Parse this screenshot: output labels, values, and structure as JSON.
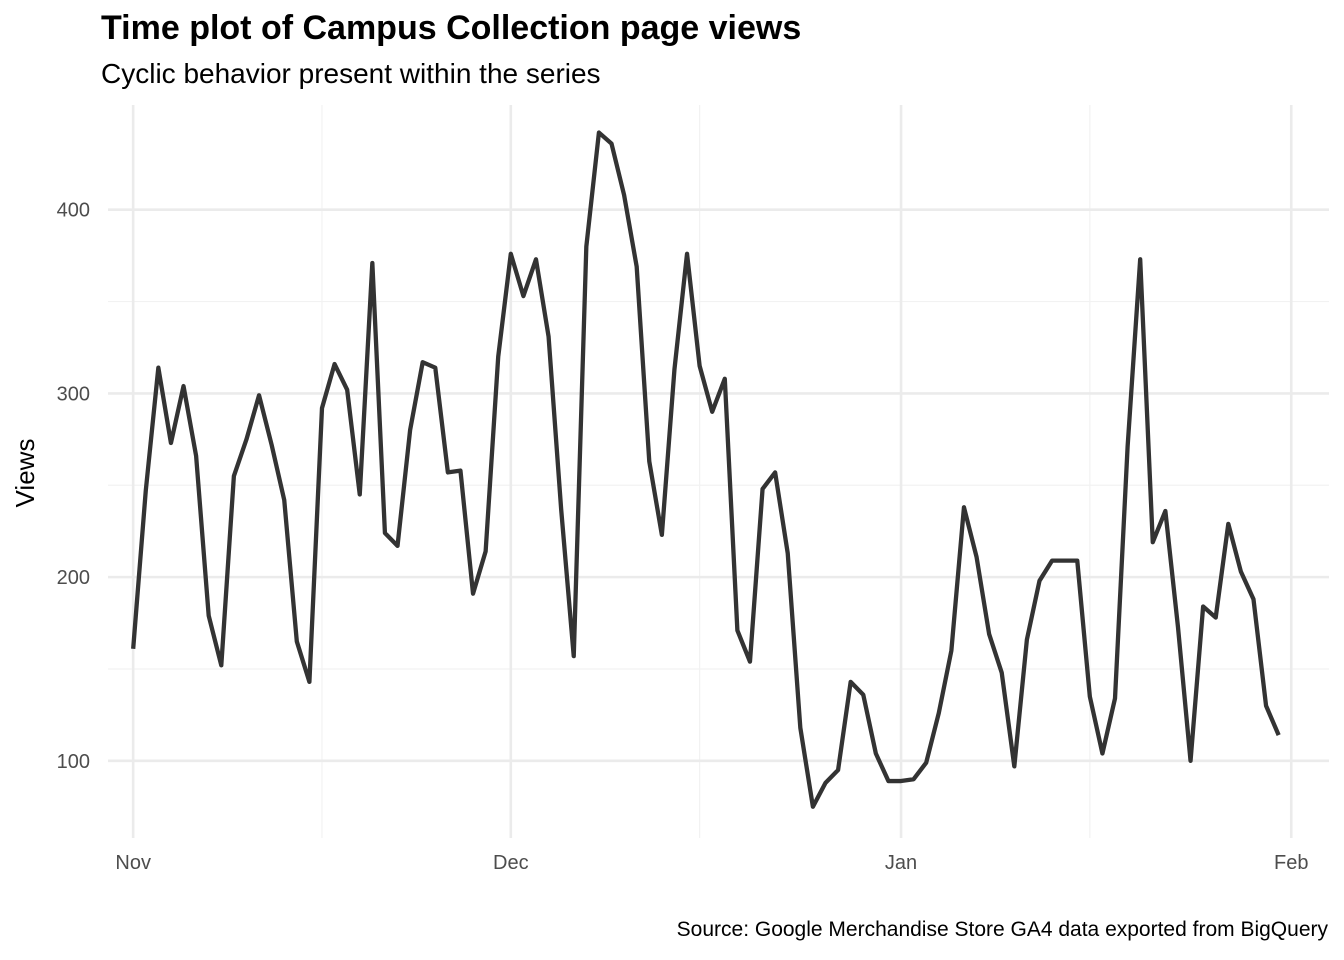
{
  "chart_data": {
    "type": "line",
    "title": "Time plot of Campus Collection page views",
    "subtitle": "Cyclic behavior present within the series",
    "caption": "Source: Google Merchandise Store GA4 data exported from BigQuery",
    "xlabel": "",
    "ylabel": "Views",
    "x_ticks": [
      {
        "date": "2020-11-01",
        "label": "Nov"
      },
      {
        "date": "2020-12-01",
        "label": "Dec"
      },
      {
        "date": "2021-01-01",
        "label": "Jan"
      },
      {
        "date": "2021-02-01",
        "label": "Feb"
      }
    ],
    "y_ticks": [
      100,
      200,
      300,
      400
    ],
    "xlim": [
      "2020-10-30",
      "2021-02-04"
    ],
    "ylim": [
      58,
      457
    ],
    "grid": true,
    "line_color": "#333333",
    "series": [
      {
        "values": [
          {
            "x": "2020-11-01",
            "y": 161
          },
          {
            "x": "2020-11-02",
            "y": 247
          },
          {
            "x": "2020-11-03",
            "y": 314
          },
          {
            "x": "2020-11-04",
            "y": 273
          },
          {
            "x": "2020-11-05",
            "y": 304
          },
          {
            "x": "2020-11-06",
            "y": 266
          },
          {
            "x": "2020-11-07",
            "y": 179
          },
          {
            "x": "2020-11-08",
            "y": 152
          },
          {
            "x": "2020-11-09",
            "y": 255
          },
          {
            "x": "2020-11-10",
            "y": 275
          },
          {
            "x": "2020-11-11",
            "y": 299
          },
          {
            "x": "2020-11-12",
            "y": 272
          },
          {
            "x": "2020-11-13",
            "y": 242
          },
          {
            "x": "2020-11-14",
            "y": 165
          },
          {
            "x": "2020-11-15",
            "y": 143
          },
          {
            "x": "2020-11-16",
            "y": 292
          },
          {
            "x": "2020-11-17",
            "y": 316
          },
          {
            "x": "2020-11-18",
            "y": 302
          },
          {
            "x": "2020-11-19",
            "y": 245
          },
          {
            "x": "2020-11-20",
            "y": 371
          },
          {
            "x": "2020-11-21",
            "y": 224
          },
          {
            "x": "2020-11-22",
            "y": 217
          },
          {
            "x": "2020-11-23",
            "y": 280
          },
          {
            "x": "2020-11-24",
            "y": 317
          },
          {
            "x": "2020-11-25",
            "y": 314
          },
          {
            "x": "2020-11-26",
            "y": 257
          },
          {
            "x": "2020-11-27",
            "y": 258
          },
          {
            "x": "2020-11-28",
            "y": 191
          },
          {
            "x": "2020-11-29",
            "y": 214
          },
          {
            "x": "2020-11-30",
            "y": 320
          },
          {
            "x": "2020-12-01",
            "y": 376
          },
          {
            "x": "2020-12-02",
            "y": 353
          },
          {
            "x": "2020-12-03",
            "y": 373
          },
          {
            "x": "2020-12-04",
            "y": 331
          },
          {
            "x": "2020-12-05",
            "y": 237
          },
          {
            "x": "2020-12-06",
            "y": 157
          },
          {
            "x": "2020-12-07",
            "y": 380
          },
          {
            "x": "2020-12-08",
            "y": 442
          },
          {
            "x": "2020-12-09",
            "y": 436
          },
          {
            "x": "2020-12-10",
            "y": 408
          },
          {
            "x": "2020-12-11",
            "y": 369
          },
          {
            "x": "2020-12-12",
            "y": 263
          },
          {
            "x": "2020-12-13",
            "y": 223
          },
          {
            "x": "2020-12-14",
            "y": 313
          },
          {
            "x": "2020-12-15",
            "y": 376
          },
          {
            "x": "2020-12-16",
            "y": 315
          },
          {
            "x": "2020-12-17",
            "y": 290
          },
          {
            "x": "2020-12-18",
            "y": 308
          },
          {
            "x": "2020-12-19",
            "y": 171
          },
          {
            "x": "2020-12-20",
            "y": 154
          },
          {
            "x": "2020-12-21",
            "y": 248
          },
          {
            "x": "2020-12-22",
            "y": 257
          },
          {
            "x": "2020-12-23",
            "y": 213
          },
          {
            "x": "2020-12-24",
            "y": 118
          },
          {
            "x": "2020-12-25",
            "y": 75
          },
          {
            "x": "2020-12-26",
            "y": 88
          },
          {
            "x": "2020-12-27",
            "y": 95
          },
          {
            "x": "2020-12-28",
            "y": 143
          },
          {
            "x": "2020-12-29",
            "y": 136
          },
          {
            "x": "2020-12-30",
            "y": 104
          },
          {
            "x": "2020-12-31",
            "y": 89
          },
          {
            "x": "2021-01-01",
            "y": 89
          },
          {
            "x": "2021-01-02",
            "y": 90
          },
          {
            "x": "2021-01-03",
            "y": 99
          },
          {
            "x": "2021-01-04",
            "y": 126
          },
          {
            "x": "2021-01-05",
            "y": 160
          },
          {
            "x": "2021-01-06",
            "y": 238
          },
          {
            "x": "2021-01-07",
            "y": 211
          },
          {
            "x": "2021-01-08",
            "y": 169
          },
          {
            "x": "2021-01-09",
            "y": 148
          },
          {
            "x": "2021-01-10",
            "y": 97
          },
          {
            "x": "2021-01-11",
            "y": 166
          },
          {
            "x": "2021-01-12",
            "y": 198
          },
          {
            "x": "2021-01-13",
            "y": 209
          },
          {
            "x": "2021-01-14",
            "y": 209
          },
          {
            "x": "2021-01-15",
            "y": 209
          },
          {
            "x": "2021-01-16",
            "y": 135
          },
          {
            "x": "2021-01-17",
            "y": 104
          },
          {
            "x": "2021-01-18",
            "y": 134
          },
          {
            "x": "2021-01-19",
            "y": 271
          },
          {
            "x": "2021-01-20",
            "y": 373
          },
          {
            "x": "2021-01-21",
            "y": 219
          },
          {
            "x": "2021-01-22",
            "y": 236
          },
          {
            "x": "2021-01-23",
            "y": 173
          },
          {
            "x": "2021-01-24",
            "y": 100
          },
          {
            "x": "2021-01-25",
            "y": 184
          },
          {
            "x": "2021-01-26",
            "y": 178
          },
          {
            "x": "2021-01-27",
            "y": 229
          },
          {
            "x": "2021-01-28",
            "y": 203
          },
          {
            "x": "2021-01-29",
            "y": 188
          },
          {
            "x": "2021-01-30",
            "y": 130
          },
          {
            "x": "2021-01-31",
            "y": 114
          }
        ]
      }
    ]
  }
}
